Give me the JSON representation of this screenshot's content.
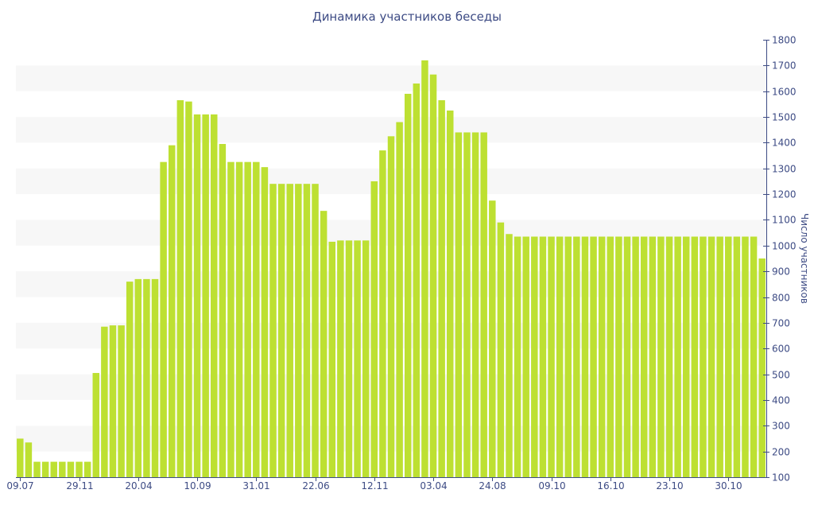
{
  "chart_data": {
    "type": "bar",
    "title": "Динамика участников беседы",
    "xlabel": "",
    "ylabel": "Число участников",
    "ylim": [
      100,
      1800
    ],
    "y_ticks": [
      100,
      200,
      300,
      400,
      500,
      600,
      700,
      800,
      900,
      1000,
      1100,
      1200,
      1300,
      1400,
      1500,
      1600,
      1700,
      1800
    ],
    "y_axis_position": "right",
    "grid": "alternating horizontal bands",
    "x_tick_labels": [
      "09.07",
      "29.11",
      "20.04",
      "10.09",
      "31.01",
      "22.06",
      "12.11",
      "03.04",
      "24.08",
      "09.10",
      "16.10",
      "23.10",
      "30.10"
    ],
    "x_tick_label_positions": [
      0,
      7,
      14,
      21,
      28,
      35,
      42,
      49,
      56,
      63,
      70,
      77,
      84
    ],
    "values": [
      250,
      235,
      160,
      160,
      160,
      160,
      160,
      160,
      160,
      505,
      685,
      690,
      690,
      860,
      870,
      870,
      870,
      1325,
      1390,
      1565,
      1560,
      1510,
      1510,
      1510,
      1395,
      1325,
      1325,
      1325,
      1325,
      1305,
      1240,
      1240,
      1240,
      1240,
      1240,
      1240,
      1135,
      1015,
      1020,
      1020,
      1020,
      1020,
      1250,
      1370,
      1425,
      1480,
      1590,
      1630,
      1720,
      1665,
      1565,
      1525,
      1440,
      1440,
      1440,
      1440,
      1175,
      1090,
      1045,
      1035,
      1035,
      1035,
      1035,
      1035,
      1035,
      1035,
      1035,
      1035,
      1035,
      1035,
      1035,
      1035,
      1035,
      1035,
      1035,
      1035,
      1035,
      1035,
      1035,
      1035,
      1035,
      1035,
      1035,
      1035,
      1035,
      1035,
      1035,
      1035,
      950
    ],
    "bar_color": "#bde032",
    "band_color": "#f7f7f7",
    "text_color": "#3d4b84",
    "axis_color": "#3d4b84"
  }
}
